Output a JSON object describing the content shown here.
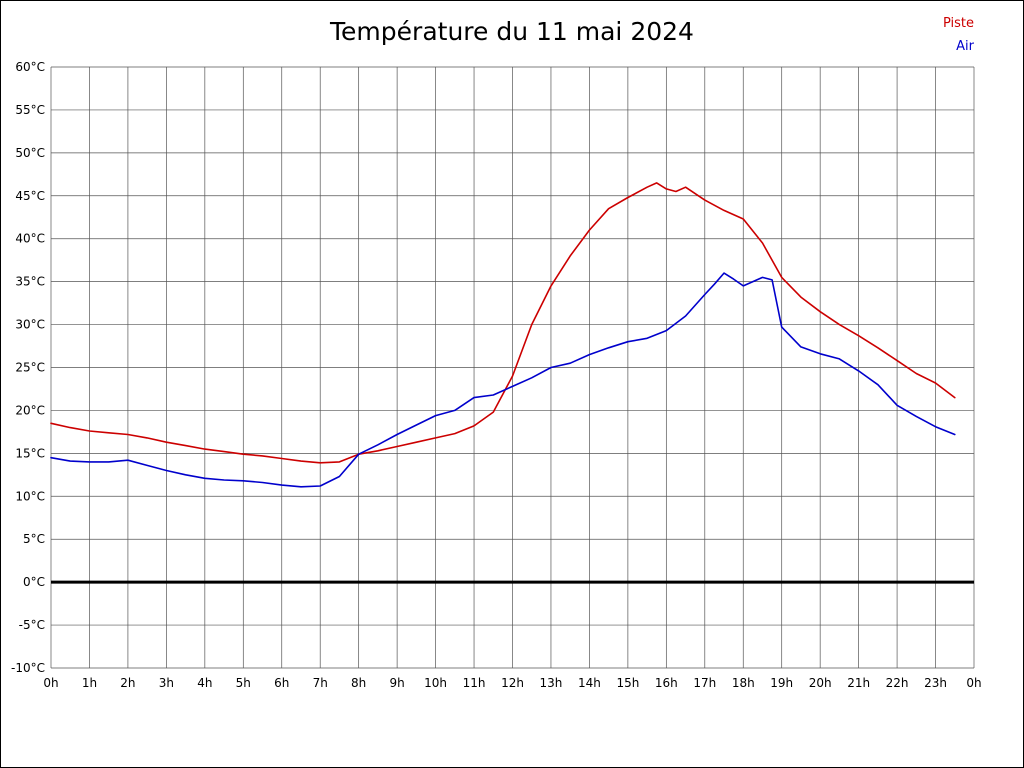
{
  "chart": {
    "title": "Température du 11 mai 2024",
    "legend": [
      {
        "label": "Piste",
        "color": "#cc0000"
      },
      {
        "label": "Air",
        "color": "#0000cc"
      }
    ]
  },
  "chart_data": {
    "type": "line",
    "title": "Température du 11 mai 2024",
    "xlabel": "",
    "ylabel": "",
    "xlim": [
      0,
      24
    ],
    "ylim": [
      -10,
      60
    ],
    "grid": true,
    "zero_line": true,
    "legend_position": "top-right",
    "x_ticks": [
      0,
      1,
      2,
      3,
      4,
      5,
      6,
      7,
      8,
      9,
      10,
      11,
      12,
      13,
      14,
      15,
      16,
      17,
      18,
      19,
      20,
      21,
      22,
      23,
      24
    ],
    "x_tick_labels": [
      "0h",
      "1h",
      "2h",
      "3h",
      "4h",
      "5h",
      "6h",
      "7h",
      "8h",
      "9h",
      "10h",
      "11h",
      "12h",
      "13h",
      "14h",
      "15h",
      "16h",
      "17h",
      "18h",
      "19h",
      "20h",
      "21h",
      "22h",
      "23h",
      "0h"
    ],
    "y_ticks": [
      60,
      55,
      50,
      45,
      40,
      35,
      30,
      25,
      20,
      15,
      10,
      5,
      0,
      -5,
      -10
    ],
    "y_tick_labels": [
      "60°C",
      "55°C",
      "50°C",
      "45°C",
      "40°C",
      "35°C",
      "30°C",
      "25°C",
      "20°C",
      "15°C",
      "10°C",
      "5°C",
      "0°C",
      "-5°C",
      "-10°C"
    ],
    "series": [
      {
        "name": "Piste",
        "color": "#cc0000",
        "x": [
          0,
          0.5,
          1,
          1.5,
          2,
          2.5,
          3,
          3.5,
          4,
          4.5,
          5,
          5.5,
          6,
          6.5,
          7,
          7.5,
          8,
          8.5,
          9,
          9.5,
          10,
          10.5,
          11,
          11.5,
          12,
          12.5,
          13,
          13.5,
          14,
          14.5,
          15,
          15.5,
          15.75,
          16,
          16.25,
          16.5,
          17,
          17.5,
          18,
          18.5,
          19,
          19.5,
          20,
          20.5,
          21,
          21.5,
          22,
          22.5,
          23,
          23.5
        ],
        "y": [
          18.5,
          18,
          17.6,
          17.4,
          17.2,
          16.8,
          16.3,
          15.9,
          15.5,
          15.2,
          14.9,
          14.7,
          14.4,
          14.1,
          13.9,
          14,
          14.9,
          15.3,
          15.8,
          16.3,
          16.8,
          17.3,
          18.2,
          19.8,
          24,
          30,
          34.5,
          38,
          41,
          43.5,
          44.8,
          46,
          46.5,
          45.8,
          45.5,
          46,
          44.5,
          43.3,
          42.3,
          39.5,
          35.5,
          33.2,
          31.5,
          30,
          28.7,
          27.3,
          25.8,
          24.3,
          23.2,
          21.5
        ]
      },
      {
        "name": "Air",
        "color": "#0000cc",
        "x": [
          0,
          0.5,
          1,
          1.5,
          2,
          2.5,
          3,
          3.5,
          4,
          4.5,
          5,
          5.5,
          6,
          6.5,
          7,
          7.5,
          8,
          8.5,
          9,
          9.5,
          10,
          10.5,
          11,
          11.5,
          12,
          12.5,
          13,
          13.5,
          14,
          14.5,
          15,
          15.5,
          16,
          16.5,
          17,
          17.25,
          17.5,
          17.75,
          18,
          18.5,
          18.75,
          19,
          19.5,
          20,
          20.5,
          21,
          21.5,
          22,
          22.5,
          23,
          23.5
        ],
        "y": [
          14.5,
          14.1,
          14,
          14,
          14.2,
          13.6,
          13,
          12.5,
          12.1,
          11.9,
          11.8,
          11.6,
          11.3,
          11.1,
          11.2,
          12.3,
          14.9,
          16,
          17.2,
          18.3,
          19.4,
          20,
          21.5,
          21.8,
          22.8,
          23.8,
          25,
          25.5,
          26.5,
          27.3,
          28,
          28.4,
          29.3,
          31,
          33.5,
          34.7,
          36,
          35.3,
          34.5,
          35.5,
          35.2,
          29.7,
          27.4,
          26.6,
          26,
          24.6,
          23,
          20.6,
          19.3,
          18.1,
          17.2
        ]
      }
    ]
  }
}
